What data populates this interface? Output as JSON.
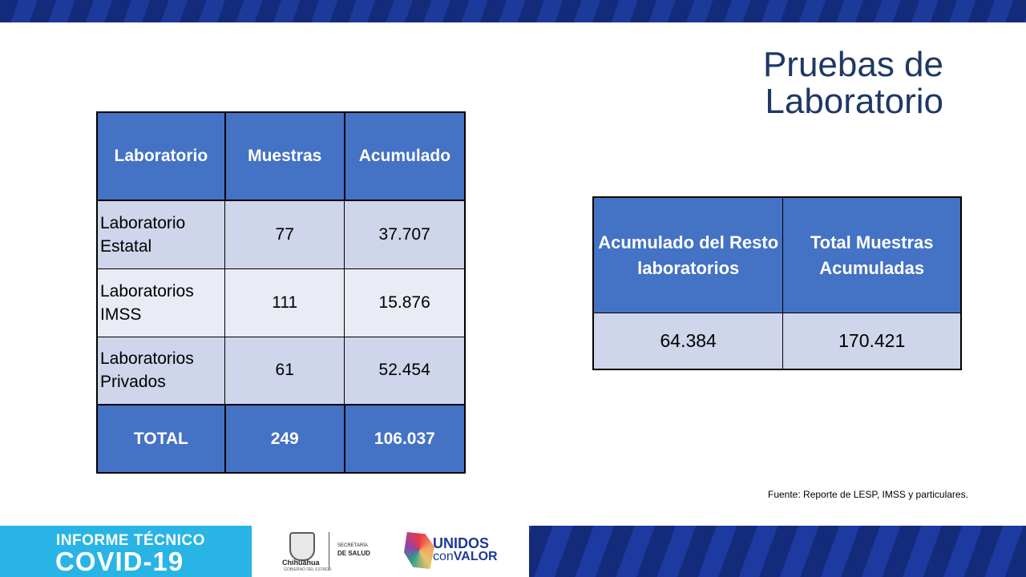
{
  "title_line1": "Pruebas de",
  "title_line2": "Laboratorio",
  "lab_table": {
    "headers": [
      "Laboratorio",
      "Muestras",
      "Acumulado"
    ],
    "rows": [
      {
        "name": "Laboratorio Estatal",
        "muestras": "77",
        "acumulado": "37.707"
      },
      {
        "name": "Laboratorios IMSS",
        "muestras": "111",
        "acumulado": "15.876"
      },
      {
        "name": "Laboratorios Privados",
        "muestras": "61",
        "acumulado": "52.454"
      }
    ],
    "total": {
      "label": "TOTAL",
      "muestras": "249",
      "acumulado": "106.037"
    }
  },
  "summary_table": {
    "headers": [
      "Acumulado del Resto laboratorios",
      "Total Muestras Acumuladas"
    ],
    "values": [
      "64.384",
      "170.421"
    ]
  },
  "source": "Fuente: Reporte de LESP, IMSS y particulares.",
  "footer": {
    "line1": "INFORME TÉCNICO",
    "line2": "COVID-19",
    "chihuahua": "Chihuahua",
    "chihuahua_sub": "GOBIERNO DEL ESTADO",
    "secretaria": "SECRETARÍA",
    "salud": "DE SALUD",
    "unidos": "UNIDOS",
    "con": "con",
    "valor": "VALOR"
  },
  "colors": {
    "header_blue": "#4472c4",
    "row_light": "#cfd5ea",
    "row_lighter": "#e9ebf5",
    "title": "#1f3864",
    "footer_cyan": "#29b4e6",
    "footer_navy": "#142a7a"
  }
}
